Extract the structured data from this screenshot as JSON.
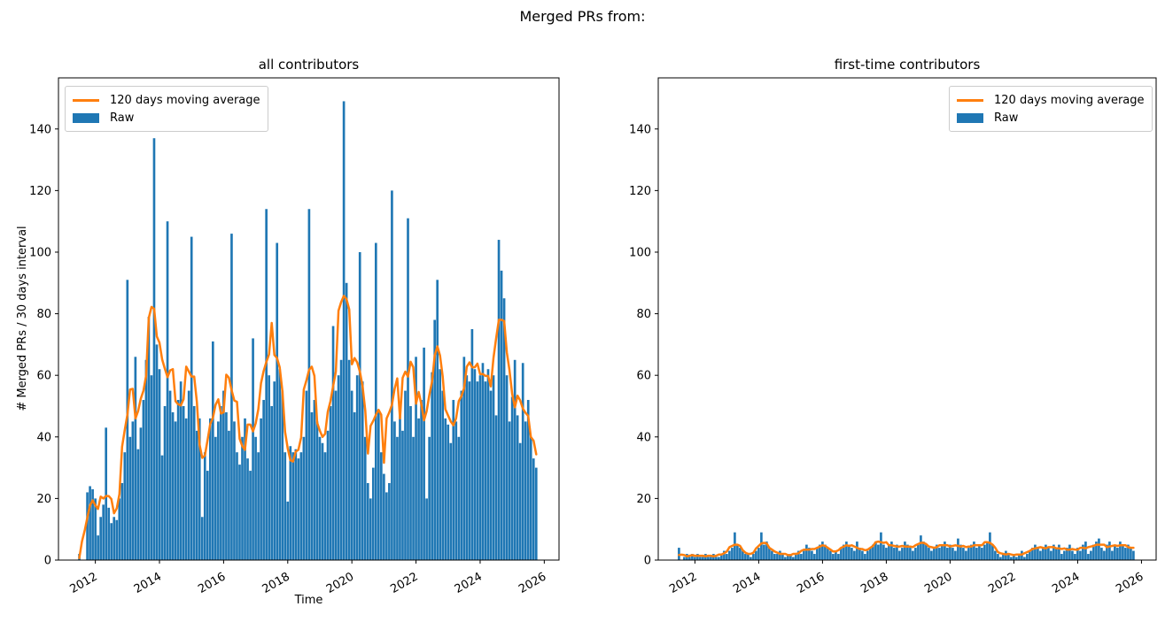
{
  "figure": {
    "suptitle": "Merged PRs from:",
    "background": "#ffffff"
  },
  "colors": {
    "raw": "#1f77b4",
    "moving_average": "#ff7f0e",
    "text": "#000000",
    "axis": "#000000",
    "legend_border": "#cccccc"
  },
  "legend": {
    "moving_average_label": "120 days moving average",
    "raw_label": "Raw"
  },
  "chart_data": [
    {
      "type": "bar",
      "title": "all contributors",
      "xlabel": "Time",
      "ylabel": "# Merged PRs / 30 days interval",
      "legend_position": "top-left",
      "grid": false,
      "xlim": [
        2010.85,
        2026.46
      ],
      "ylim": [
        0,
        156.6
      ],
      "yticks": [
        0,
        20,
        40,
        60,
        80,
        100,
        120,
        140
      ],
      "xticks": [
        2012,
        2014,
        2016,
        2018,
        2020,
        2022,
        2024,
        2026
      ],
      "x_start": 2011.5,
      "x_step_years": 0.08333,
      "bar_interval_days": 30,
      "moving_average_days": 120,
      "moving_average_window_bars": 5,
      "bar_values": [
        2,
        0,
        0,
        22,
        24,
        23,
        20,
        8,
        14,
        18,
        43,
        17,
        12,
        14,
        13,
        20,
        25,
        35,
        91,
        40,
        45,
        66,
        36,
        43,
        52,
        65,
        79,
        60,
        137,
        70,
        62,
        34,
        50,
        110,
        55,
        48,
        45,
        52,
        58,
        50,
        46,
        55,
        105,
        50,
        42,
        46,
        14,
        35,
        29,
        46,
        71,
        40,
        45,
        50,
        55,
        48,
        42,
        106,
        45,
        35,
        31,
        40,
        46,
        33,
        29,
        72,
        40,
        35,
        46,
        52,
        114,
        60,
        50,
        58,
        103,
        62,
        55,
        35,
        19,
        37,
        35,
        36,
        33,
        35,
        40,
        55,
        114,
        48,
        52,
        45,
        40,
        38,
        35,
        42,
        50,
        76,
        55,
        60,
        65,
        149,
        90,
        65,
        55,
        48,
        60,
        100,
        58,
        40,
        25,
        20,
        30,
        103,
        48,
        35,
        28,
        22,
        25,
        120,
        45,
        40,
        48,
        42,
        55,
        111,
        50,
        40,
        66,
        46,
        52,
        69,
        20,
        40,
        61,
        78,
        91,
        62,
        55,
        46,
        44,
        38,
        52,
        45,
        40,
        55,
        66,
        60,
        58,
        75,
        62,
        58,
        60,
        64,
        58,
        62,
        55,
        60,
        47,
        104,
        94,
        85,
        60,
        45,
        53,
        65,
        47,
        38,
        64,
        45,
        52,
        40,
        33,
        30
      ]
    },
    {
      "type": "bar",
      "title": "first-time contributors",
      "xlabel": "",
      "ylabel": "",
      "legend_position": "top-right",
      "grid": false,
      "xlim": [
        2010.85,
        2026.46
      ],
      "ylim": [
        0,
        156.6
      ],
      "yticks": [
        0,
        20,
        40,
        60,
        80,
        100,
        120,
        140
      ],
      "xticks": [
        2012,
        2014,
        2016,
        2018,
        2020,
        2022,
        2024,
        2026
      ],
      "x_start": 2011.5,
      "x_step_years": 0.08333,
      "bar_interval_days": 30,
      "moving_average_days": 120,
      "moving_average_window_bars": 5,
      "bar_values": [
        4,
        0,
        1,
        2,
        1,
        2,
        1,
        2,
        1,
        1,
        2,
        1,
        1,
        2,
        1,
        1,
        2,
        3,
        2,
        3,
        4,
        9,
        5,
        4,
        3,
        2,
        2,
        1,
        2,
        3,
        4,
        9,
        5,
        6,
        4,
        3,
        2,
        2,
        3,
        2,
        1,
        2,
        2,
        1,
        2,
        3,
        2,
        3,
        5,
        4,
        3,
        2,
        4,
        5,
        6,
        5,
        4,
        3,
        2,
        3,
        2,
        4,
        5,
        6,
        5,
        4,
        3,
        6,
        4,
        3,
        2,
        3,
        4,
        5,
        6,
        5,
        9,
        5,
        4,
        5,
        6,
        4,
        5,
        3,
        4,
        6,
        5,
        4,
        3,
        4,
        5,
        8,
        6,
        5,
        4,
        3,
        4,
        5,
        4,
        5,
        6,
        4,
        5,
        4,
        3,
        7,
        5,
        4,
        3,
        4,
        5,
        6,
        4,
        5,
        4,
        5,
        6,
        9,
        5,
        3,
        2,
        1,
        2,
        3,
        2,
        1,
        2,
        1,
        2,
        3,
        1,
        2,
        3,
        4,
        5,
        4,
        3,
        4,
        5,
        4,
        3,
        5,
        4,
        5,
        2,
        3,
        4,
        5,
        3,
        2,
        4,
        3,
        5,
        6,
        2,
        3,
        5,
        6,
        7,
        4,
        3,
        5,
        6,
        3,
        5,
        4,
        6,
        5,
        4,
        5,
        4,
        3
      ]
    }
  ]
}
